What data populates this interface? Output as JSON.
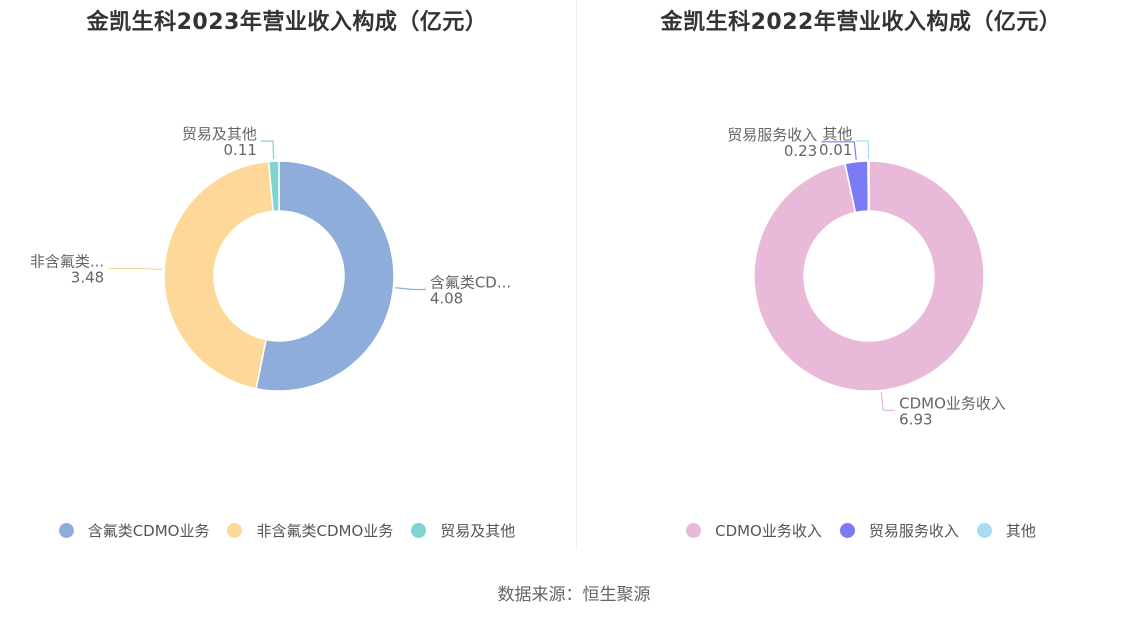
{
  "source": "数据来源：恒生聚源",
  "chart_data": [
    {
      "type": "pie",
      "donut": true,
      "title": "金凯生科2023年营业收入构成（亿元）",
      "categories": [
        "含氟类CDMO业务",
        "非含氟类CDMO业务",
        "贸易及其他"
      ],
      "label_names": [
        "含氟类CD...",
        "非含氟类...",
        "贸易及其他"
      ],
      "values": [
        4.08,
        3.48,
        0.11
      ],
      "value_labels": [
        "4.08",
        "3.48",
        "0.11"
      ],
      "colors": [
        "#8eadda",
        "#fdd898",
        "#7fd3d3"
      ],
      "legend": "bottom"
    },
    {
      "type": "pie",
      "donut": true,
      "title": "金凯生科2022年营业收入构成（亿元）",
      "categories": [
        "CDMO业务收入",
        "贸易服务收入",
        "其他"
      ],
      "label_names": [
        "CDMO业务收入",
        "贸易服务收入",
        "其他"
      ],
      "values": [
        6.93,
        0.23,
        0.01
      ],
      "value_labels": [
        "6.93",
        "0.23",
        "0.01"
      ],
      "colors": [
        "#e8b9d9",
        "#7b7bf5",
        "#a8dcf5"
      ],
      "legend": "bottom"
    }
  ]
}
